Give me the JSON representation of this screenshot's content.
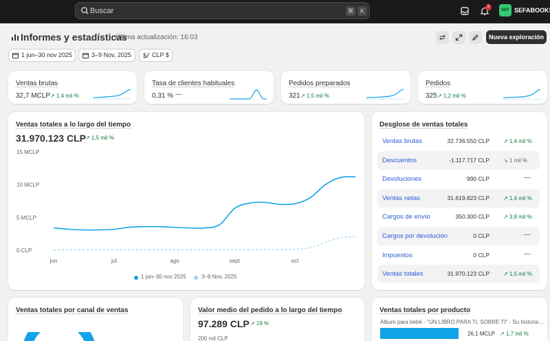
{
  "topbar": {
    "search_placeholder": "Buscar",
    "shortcut_keys": [
      "⌘",
      "K"
    ],
    "notification_count": "2",
    "avatar_initials": "SEF",
    "store_name": "SEFABOOKS"
  },
  "header": {
    "title": "Informes y estadísticas",
    "last_updated": "Última actualización: 16:03",
    "primary_button": "Nueva exploración"
  },
  "filters": {
    "date_range": "1 jun–30 nov 2025",
    "comparison": "3–9 Nov, 2025",
    "currency": "CLP $"
  },
  "kpis": [
    {
      "title": "Ventas brutas",
      "value": "32,7 MCLP",
      "delta": "↗ 1,4 mil %"
    },
    {
      "title": "Tasa de clientes habituales",
      "value": "0,31 %",
      "delta": "—"
    },
    {
      "title": "Pedidos preparados",
      "value": "321",
      "delta": "↗ 1,5 mil %"
    },
    {
      "title": "Pedidos",
      "value": "325",
      "delta": "↗ 1,2 mil %"
    }
  ],
  "sales_over_time": {
    "title": "Ventas totales a lo largo del tiempo",
    "value": "31.970.123 CLP",
    "delta": "↗ 1,5 mil %",
    "legend": [
      "1 jun–30 nov 2025",
      "3–9 Nov, 2025"
    ]
  },
  "chart_data": {
    "type": "line",
    "title": "Ventas totales a lo largo del tiempo",
    "xlabel": "",
    "ylabel": "",
    "x_ticks": [
      "jun",
      "jul",
      "ago",
      "sept",
      "oct"
    ],
    "y_ticks": [
      "15 MCLP",
      "10 MCLP",
      "5 MCLP",
      "0 CLP"
    ],
    "ylim": [
      0,
      15
    ],
    "y_unit": "MCLP",
    "grid": false,
    "legend_position": "bottom",
    "series": [
      {
        "name": "1 jun–30 nov 2025",
        "style": "solid",
        "color": "#13a3e9",
        "values": [
          3.4,
          3.2,
          3.1,
          3.1,
          3.2,
          3.5,
          3.6,
          3.6,
          3.5,
          3.4,
          3.4,
          3.9,
          6.4,
          7.2,
          7.3,
          7.0,
          7.1,
          8.0,
          10.0,
          11.1,
          11.2
        ]
      },
      {
        "name": "3–9 Nov, 2025",
        "style": "dashed",
        "color": "#9ad3f2",
        "values": [
          0.05,
          0.05,
          0.05,
          0.05,
          0.05,
          0.05,
          0.05,
          0.05,
          0.05,
          0.05,
          0.05,
          0.05,
          0.06,
          0.08,
          0.1,
          0.1,
          0.15,
          0.4,
          1.2,
          1.9,
          2.1
        ]
      }
    ]
  },
  "breakdown": {
    "title": "Desglose de ventas totales",
    "rows": [
      {
        "label": "Ventas brutas",
        "value": "32.736.550 CLP",
        "delta": "↗ 1,4 mil %",
        "tone": "up"
      },
      {
        "label": "Descuentos",
        "value": "-1.117.717 CLP",
        "delta": "↘ 1 mil %",
        "tone": "neutral"
      },
      {
        "label": "Devoluciones",
        "value": "990 CLP",
        "delta": "—",
        "tone": "dash"
      },
      {
        "label": "Ventas netas",
        "value": "31.619.823 CLP",
        "delta": "↗ 1,4 mil %",
        "tone": "up"
      },
      {
        "label": "Cargos de envío",
        "value": "350.300 CLP",
        "delta": "↗ 3,8 mil %",
        "tone": "up"
      },
      {
        "label": "Cargos por devolución",
        "value": "0 CLP",
        "delta": "—",
        "tone": "dash"
      },
      {
        "label": "Impuestos",
        "value": "0 CLP",
        "delta": "—",
        "tone": "dash"
      },
      {
        "label": "Ventas totales",
        "value": "31.970.123 CLP",
        "delta": "↗ 1,5 mil %",
        "tone": "up"
      }
    ]
  },
  "channel_card": {
    "title": "Ventas totales por canal de ventas"
  },
  "aov_card": {
    "title": "Valor medio del pedido a lo largo del tiempo",
    "value": "97.289 CLP",
    "delta": "↗ 19 %",
    "axis_top": "200 mil CLP"
  },
  "product_card": {
    "title": "Ventas totales por producto",
    "product_label": "Álbum para bebé - \"UN LIBRO PARA TI, SOBRE TI\" - Su historia ...",
    "product_value": "26,1 MCLP",
    "product_delta": "↗ 1,7 mil %"
  },
  "colors": {
    "accent": "#13a3e9",
    "positive": "#0c7a3e",
    "link": "#2a5bd7",
    "topbar": "#1a1a1a"
  }
}
